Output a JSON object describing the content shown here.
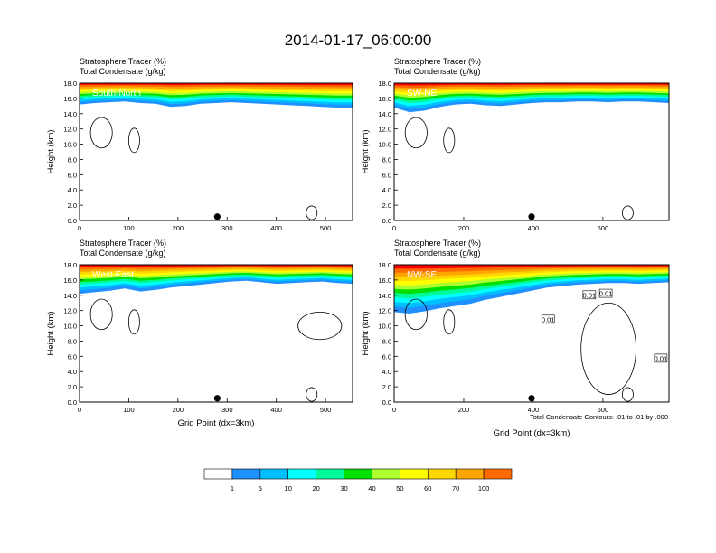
{
  "figure_title": "2014-01-17_06:00:00",
  "contour_note": "Total Condensate Contours: .01 to .01 by .000",
  "colorbar": {
    "labels": [
      "1",
      "5",
      "10",
      "20",
      "30",
      "40",
      "50",
      "60",
      "70",
      "100"
    ],
    "colors": [
      "#ffffff",
      "#1e90ff",
      "#00bfff",
      "#00ffff",
      "#00fa9a",
      "#00e000",
      "#adff2f",
      "#ffff00",
      "#ffd700",
      "#ffa500",
      "#ff6a00",
      "#ff0000"
    ]
  },
  "chart_data": [
    {
      "type": "heatmap",
      "panel_label": "South-North",
      "subtitle_1": "Stratosphere Tracer   (%)",
      "subtitle_2": "Total Condensate   (g/kg)",
      "ylabel": "Height (km)",
      "xlabel": "",
      "xlim": [
        0,
        555
      ],
      "ylim": [
        0,
        18
      ],
      "xticks": [
        "0",
        "100",
        "200",
        "300",
        "400",
        "500"
      ],
      "yticks": [
        "0.0",
        "2.0",
        "4.0",
        "6.0",
        "8.0",
        "10.0",
        "12.0",
        "14.0",
        "16.0",
        "18.0"
      ],
      "marker_x": 280,
      "tracer_base_km": [
        15.2,
        15.4,
        15.5,
        15.6,
        15.4,
        15.3,
        14.9,
        15.0,
        15.3,
        15.4,
        15.5,
        15.4,
        15.3,
        15.2,
        15.1,
        15.0,
        14.9,
        14.8,
        14.8
      ]
    },
    {
      "type": "heatmap",
      "panel_label": "SW-NE",
      "subtitle_1": "Stratosphere Tracer   (%)",
      "subtitle_2": "Total Condensate   (g/kg)",
      "ylabel": "Height (km)",
      "xlabel": "",
      "xlim": [
        0,
        790
      ],
      "ylim": [
        0,
        18
      ],
      "xticks": [
        "0",
        "200",
        "400",
        "600"
      ],
      "yticks": [
        "0.0",
        "2.0",
        "4.0",
        "6.0",
        "8.0",
        "10.0",
        "12.0",
        "14.0",
        "16.0",
        "18.0"
      ],
      "marker_x": 395,
      "tracer_base_km": [
        14.8,
        14.2,
        14.4,
        14.9,
        15.2,
        15.3,
        15.1,
        15.0,
        15.2,
        15.4,
        15.5,
        15.5,
        15.6,
        15.6,
        15.5,
        15.6,
        15.6,
        15.5,
        15.4
      ]
    },
    {
      "type": "heatmap",
      "panel_label": "West-East",
      "subtitle_1": "Stratosphere Tracer   (%)",
      "subtitle_2": "Total Condensate   (g/kg)",
      "ylabel": "Height (km)",
      "xlabel": "Grid Point (dx=3km)",
      "xlim": [
        0,
        555
      ],
      "ylim": [
        0,
        18
      ],
      "xticks": [
        "0",
        "100",
        "200",
        "300",
        "400",
        "500"
      ],
      "yticks": [
        "0.0",
        "2.0",
        "4.0",
        "6.0",
        "8.0",
        "10.0",
        "12.0",
        "14.0",
        "16.0",
        "18.0"
      ],
      "marker_x": 280,
      "tracer_base_km": [
        14.2,
        14.4,
        14.6,
        14.9,
        14.5,
        14.7,
        15.0,
        15.2,
        15.4,
        15.6,
        15.8,
        15.9,
        15.7,
        15.5,
        15.6,
        15.7,
        15.8,
        15.6,
        15.5
      ]
    },
    {
      "type": "heatmap",
      "panel_label": "NW-SE",
      "subtitle_1": "Stratosphere Tracer   (%)",
      "subtitle_2": "Total Condensate   (g/kg)",
      "ylabel": "Height (km)",
      "xlabel": "Grid Point (dx=3km)",
      "xlim": [
        0,
        790
      ],
      "ylim": [
        0,
        18
      ],
      "xticks": [
        "0",
        "200",
        "400",
        "600"
      ],
      "yticks": [
        "0.0",
        "2.0",
        "4.0",
        "6.0",
        "8.0",
        "10.0",
        "12.0",
        "14.0",
        "16.0",
        "18.0"
      ],
      "marker_x": 395,
      "contour_labels": [
        "0.01",
        "0.01",
        "0.01",
        "0.01"
      ],
      "tracer_base_km": [
        11.8,
        11.6,
        11.9,
        12.3,
        12.6,
        12.9,
        13.4,
        13.8,
        14.2,
        14.6,
        15.0,
        15.2,
        15.4,
        15.5,
        15.6,
        15.6,
        15.5,
        15.6,
        15.7
      ]
    }
  ]
}
